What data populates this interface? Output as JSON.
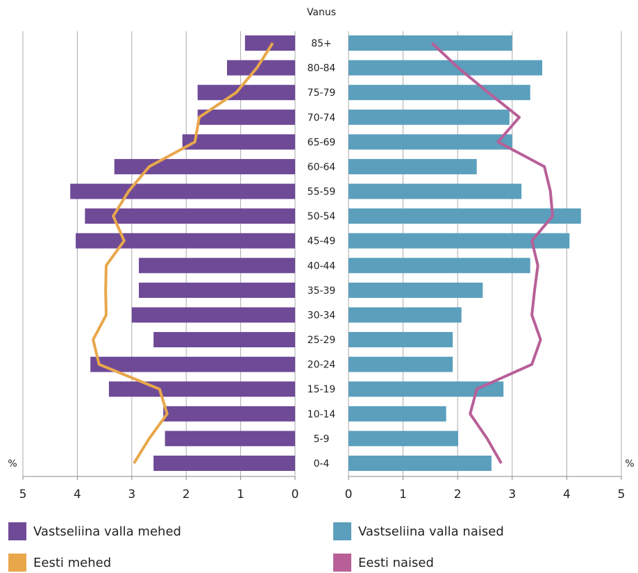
{
  "chart_data": {
    "type": "pyramid",
    "axis_title": "Vanus",
    "unit_label": "%",
    "categories": [
      "85+",
      "80-84",
      "75-79",
      "70-74",
      "65-69",
      "60-64",
      "55-59",
      "50-54",
      "45-49",
      "40-44",
      "35-39",
      "30-34",
      "25-29",
      "20-24",
      "15-19",
      "10-14",
      "5-9",
      "0-4"
    ],
    "series": [
      {
        "name": "Vastseliina valla mehed",
        "color": "#6f4a97",
        "side": "left",
        "mark": "bar",
        "values": [
          0.92,
          1.25,
          1.79,
          1.79,
          2.07,
          3.32,
          4.13,
          3.86,
          4.03,
          2.87,
          2.87,
          3.0,
          2.6,
          3.76,
          3.42,
          2.42,
          2.39,
          2.6
        ]
      },
      {
        "name": "Vastseliina valla naised",
        "color": "#5b9fbd",
        "side": "right",
        "mark": "bar",
        "values": [
          3.0,
          3.55,
          3.33,
          2.95,
          3.0,
          2.35,
          3.17,
          4.26,
          4.05,
          3.33,
          2.46,
          2.07,
          1.91,
          1.91,
          2.84,
          1.79,
          2.01,
          2.62
        ]
      },
      {
        "name": "Eesti mehed",
        "color": "#e8a74b",
        "side": "left",
        "mark": "line",
        "values": [
          0.41,
          0.7,
          1.08,
          1.76,
          1.84,
          2.68,
          3.06,
          3.34,
          3.14,
          3.47,
          3.48,
          3.47,
          3.71,
          3.6,
          2.49,
          2.35,
          2.68,
          2.96
        ]
      },
      {
        "name": "Eesti naised",
        "color": "#b85f98",
        "side": "right",
        "mark": "line",
        "values": [
          1.53,
          2.01,
          2.56,
          3.13,
          2.74,
          3.59,
          3.7,
          3.74,
          3.36,
          3.47,
          3.41,
          3.36,
          3.52,
          3.36,
          2.35,
          2.23,
          2.54,
          2.8
        ]
      }
    ],
    "xlim": [
      0,
      5
    ],
    "xticks": [
      0,
      1,
      2,
      3,
      4,
      5
    ],
    "grid": true
  }
}
